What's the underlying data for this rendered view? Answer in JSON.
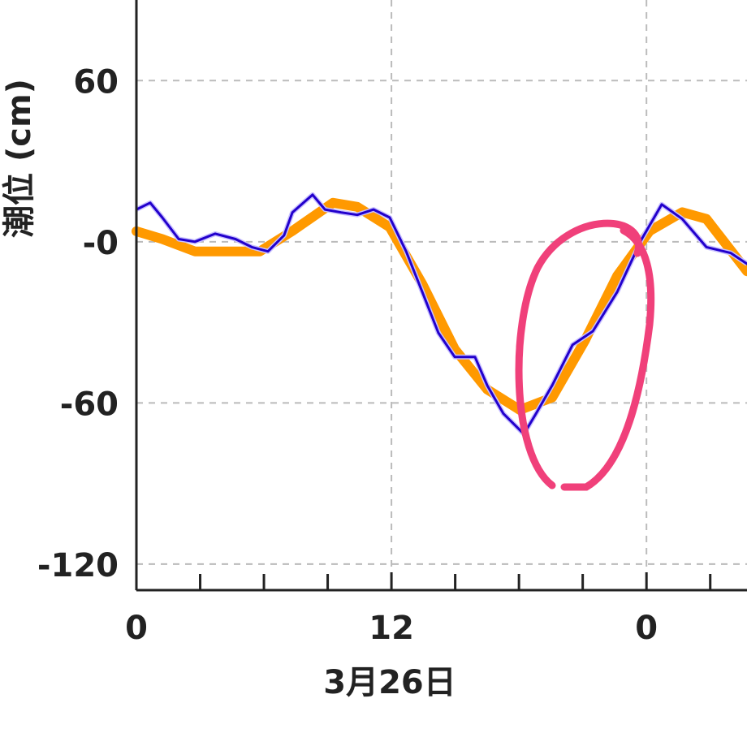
{
  "chart_data": {
    "type": "line",
    "x_label": "3月26日",
    "y_label": "潮位 (cm)",
    "xlim": [
      0,
      28.73
    ],
    "ylim": [
      -130,
      90
    ],
    "xticks": [
      0,
      12,
      {
        "value": 24,
        "label": "0"
      }
    ],
    "xminorticks": [
      3,
      6,
      9,
      15,
      18,
      21,
      27
    ],
    "yticks": [
      60,
      {
        "value": 0,
        "label": "-0"
      },
      -60,
      -120
    ],
    "grid": true,
    "series": [
      {
        "color": "#ff9900",
        "x": [
          0,
          1.22,
          2.75,
          4.28,
          5.81,
          7.34,
          9.25,
          10.39,
          11.92,
          13.45,
          14.98,
          16.51,
          18.04,
          19.56,
          21.09,
          22.62,
          24.15,
          25.68,
          26.82,
          28.73
        ],
        "values": [
          3.9,
          1,
          -3.6,
          -3.6,
          -3.6,
          4,
          14.5,
          13,
          5.4,
          -15.7,
          -40,
          -55,
          -62.6,
          -58,
          -37,
          -12.7,
          4,
          11,
          8.5,
          -11
        ]
      },
      {
        "color": "#2200cc",
        "x": [
          0,
          0.65,
          1.22,
          1.99,
          2.75,
          3.71,
          4.66,
          5.43,
          6.19,
          6.95,
          7.34,
          8.29,
          8.87,
          9.63,
          10.39,
          11.16,
          11.92,
          12.69,
          13.45,
          14.21,
          14.98,
          15.93,
          16.51,
          17.27,
          18.23,
          18.8,
          19.56,
          20.52,
          21.48,
          22.62,
          23.77,
          24.72,
          25.68,
          26.82,
          27.97,
          28.73
        ],
        "values": [
          12,
          14.5,
          9,
          1,
          0,
          3,
          1,
          -2,
          -3.6,
          2.4,
          10.9,
          17.5,
          12,
          10.9,
          10,
          12,
          9,
          -3.6,
          -18.7,
          -33.9,
          -42.9,
          -42.9,
          -53.5,
          -64,
          -71.6,
          -64,
          -53.5,
          -38.4,
          -33.3,
          -18.7,
          0.9,
          13.9,
          8.5,
          -2,
          -4.2,
          -8.2
        ]
      }
    ]
  }
}
